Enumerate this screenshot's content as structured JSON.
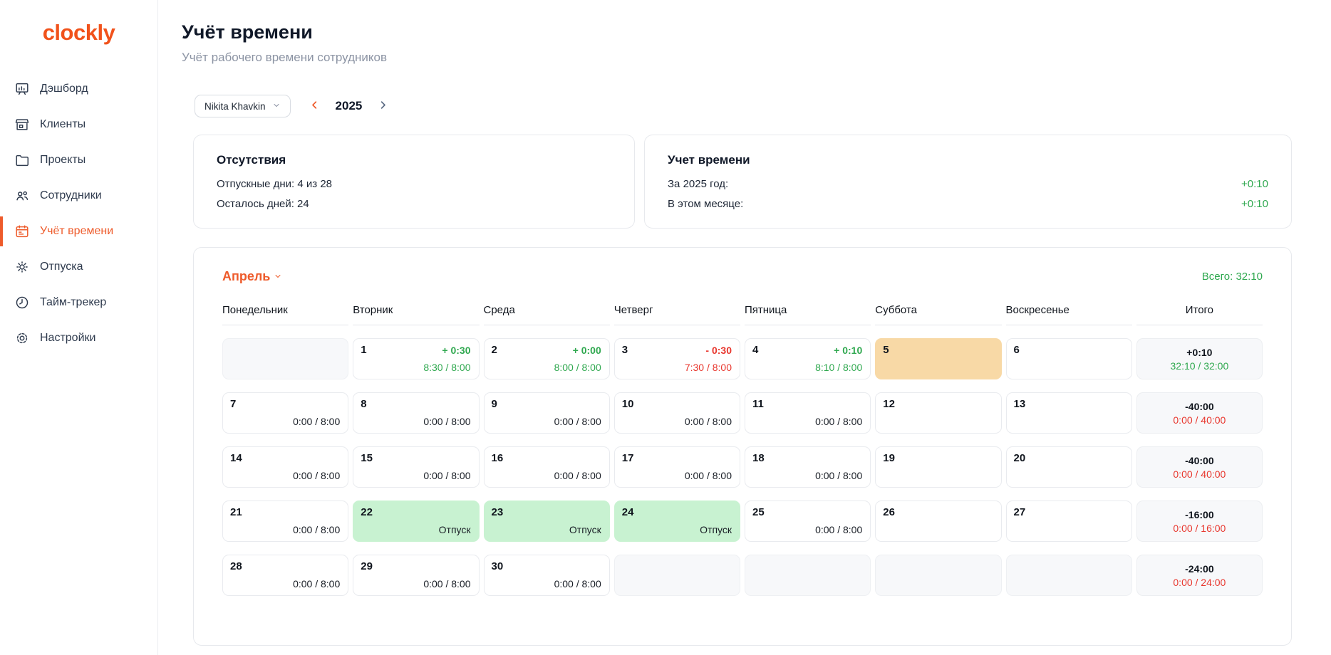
{
  "colors": {
    "brand": "#f1521b",
    "accent_orange": "#ee5b2b",
    "green": "#2fa84f",
    "red": "#e8362d",
    "saturday_bg": "#f8d9a6",
    "vacation_bg": "#c8f2d1"
  },
  "brand": {
    "logo": "clockly"
  },
  "sidebar": {
    "items": [
      {
        "key": "dashboard",
        "label": "Дэшборд",
        "icon": "dashboard-icon",
        "active": false
      },
      {
        "key": "clients",
        "label": "Клиенты",
        "icon": "storefront-icon",
        "active": false
      },
      {
        "key": "projects",
        "label": "Проекты",
        "icon": "folder-icon",
        "active": false
      },
      {
        "key": "employees",
        "label": "Сотрудники",
        "icon": "users-icon",
        "active": false
      },
      {
        "key": "timesheet",
        "label": "Учёт времени",
        "icon": "calendar-icon",
        "active": true
      },
      {
        "key": "vacations",
        "label": "Отпуска",
        "icon": "sun-icon",
        "active": false
      },
      {
        "key": "time-tracker",
        "label": "Тайм-трекер",
        "icon": "clock-icon",
        "active": false
      },
      {
        "key": "settings",
        "label": "Настройки",
        "icon": "gear-icon",
        "active": false
      }
    ]
  },
  "header": {
    "title": "Учёт времени",
    "subtitle": "Учёт рабочего времени сотрудников"
  },
  "controls": {
    "employee": "Nikita Khavkin",
    "year": "2025"
  },
  "cards": {
    "absences": {
      "title": "Отсутствия",
      "rows": [
        {
          "label": "Отпускные дни: 4 из 28",
          "value": ""
        },
        {
          "label": "Осталось дней: 24",
          "value": ""
        }
      ]
    },
    "time": {
      "title": "Учет времени",
      "rows": [
        {
          "label": "За 2025 год:",
          "value": "+0:10"
        },
        {
          "label": "В этом месяце:",
          "value": "+0:10"
        }
      ]
    }
  },
  "calendar": {
    "month": "Апрель",
    "total_label": "Всего: 32:10",
    "day_headers": [
      "Понедельник",
      "Вторник",
      "Среда",
      "Четверг",
      "Пятница",
      "Суббота",
      "Воскресенье",
      "Итого"
    ],
    "weeks": [
      {
        "cells": [
          {
            "type": "empty"
          },
          {
            "type": "day",
            "day": "1",
            "delta": "+ 0:30",
            "delta_status": "pos",
            "hours": "8:30 / 8:00",
            "hours_status": "pos"
          },
          {
            "type": "day",
            "day": "2",
            "delta": "+ 0:00",
            "delta_status": "pos",
            "hours": "8:00 / 8:00",
            "hours_status": "pos"
          },
          {
            "type": "day",
            "day": "3",
            "delta": "- 0:30",
            "delta_status": "neg",
            "hours": "7:30 / 8:00",
            "hours_status": "neg"
          },
          {
            "type": "day",
            "day": "4",
            "delta": "+ 0:10",
            "delta_status": "pos",
            "hours": "8:10 / 8:00",
            "hours_status": "pos"
          },
          {
            "type": "day",
            "day": "5",
            "variant": "weekend-selected"
          },
          {
            "type": "day",
            "day": "6"
          }
        ],
        "total": {
          "delta": "+0:10",
          "hours": "32:10 / 32:00",
          "hours_status": "pos"
        }
      },
      {
        "cells": [
          {
            "type": "day",
            "day": "7",
            "hours": "0:00 / 8:00",
            "hours_status": "neutral"
          },
          {
            "type": "day",
            "day": "8",
            "hours": "0:00 / 8:00",
            "hours_status": "neutral"
          },
          {
            "type": "day",
            "day": "9",
            "hours": "0:00 / 8:00",
            "hours_status": "neutral"
          },
          {
            "type": "day",
            "day": "10",
            "hours": "0:00 / 8:00",
            "hours_status": "neutral"
          },
          {
            "type": "day",
            "day": "11",
            "hours": "0:00 / 8:00",
            "hours_status": "neutral"
          },
          {
            "type": "day",
            "day": "12"
          },
          {
            "type": "day",
            "day": "13"
          }
        ],
        "total": {
          "delta": "-40:00",
          "hours": "0:00 / 40:00",
          "hours_status": "neg"
        }
      },
      {
        "cells": [
          {
            "type": "day",
            "day": "14",
            "hours": "0:00 / 8:00",
            "hours_status": "neutral"
          },
          {
            "type": "day",
            "day": "15",
            "hours": "0:00 / 8:00",
            "hours_status": "neutral"
          },
          {
            "type": "day",
            "day": "16",
            "hours": "0:00 / 8:00",
            "hours_status": "neutral"
          },
          {
            "type": "day",
            "day": "17",
            "hours": "0:00 / 8:00",
            "hours_status": "neutral"
          },
          {
            "type": "day",
            "day": "18",
            "hours": "0:00 / 8:00",
            "hours_status": "neutral"
          },
          {
            "type": "day",
            "day": "19"
          },
          {
            "type": "day",
            "day": "20"
          }
        ],
        "total": {
          "delta": "-40:00",
          "hours": "0:00 / 40:00",
          "hours_status": "neg"
        }
      },
      {
        "cells": [
          {
            "type": "day",
            "day": "21",
            "hours": "0:00 / 8:00",
            "hours_status": "neutral"
          },
          {
            "type": "day",
            "day": "22",
            "variant": "vacation",
            "label": "Отпуск"
          },
          {
            "type": "day",
            "day": "23",
            "variant": "vacation",
            "label": "Отпуск"
          },
          {
            "type": "day",
            "day": "24",
            "variant": "vacation",
            "label": "Отпуск"
          },
          {
            "type": "day",
            "day": "25",
            "hours": "0:00 / 8:00",
            "hours_status": "neutral"
          },
          {
            "type": "day",
            "day": "26"
          },
          {
            "type": "day",
            "day": "27"
          }
        ],
        "total": {
          "delta": "-16:00",
          "hours": "0:00 / 16:00",
          "hours_status": "neg"
        }
      },
      {
        "cells": [
          {
            "type": "day",
            "day": "28",
            "hours": "0:00 / 8:00",
            "hours_status": "neutral"
          },
          {
            "type": "day",
            "day": "29",
            "hours": "0:00 / 8:00",
            "hours_status": "neutral"
          },
          {
            "type": "day",
            "day": "30",
            "hours": "0:00 / 8:00",
            "hours_status": "neutral"
          },
          {
            "type": "empty"
          },
          {
            "type": "empty"
          },
          {
            "type": "empty"
          },
          {
            "type": "empty"
          }
        ],
        "total": {
          "delta": "-24:00",
          "hours": "0:00 / 24:00",
          "hours_status": "neg"
        }
      }
    ]
  }
}
